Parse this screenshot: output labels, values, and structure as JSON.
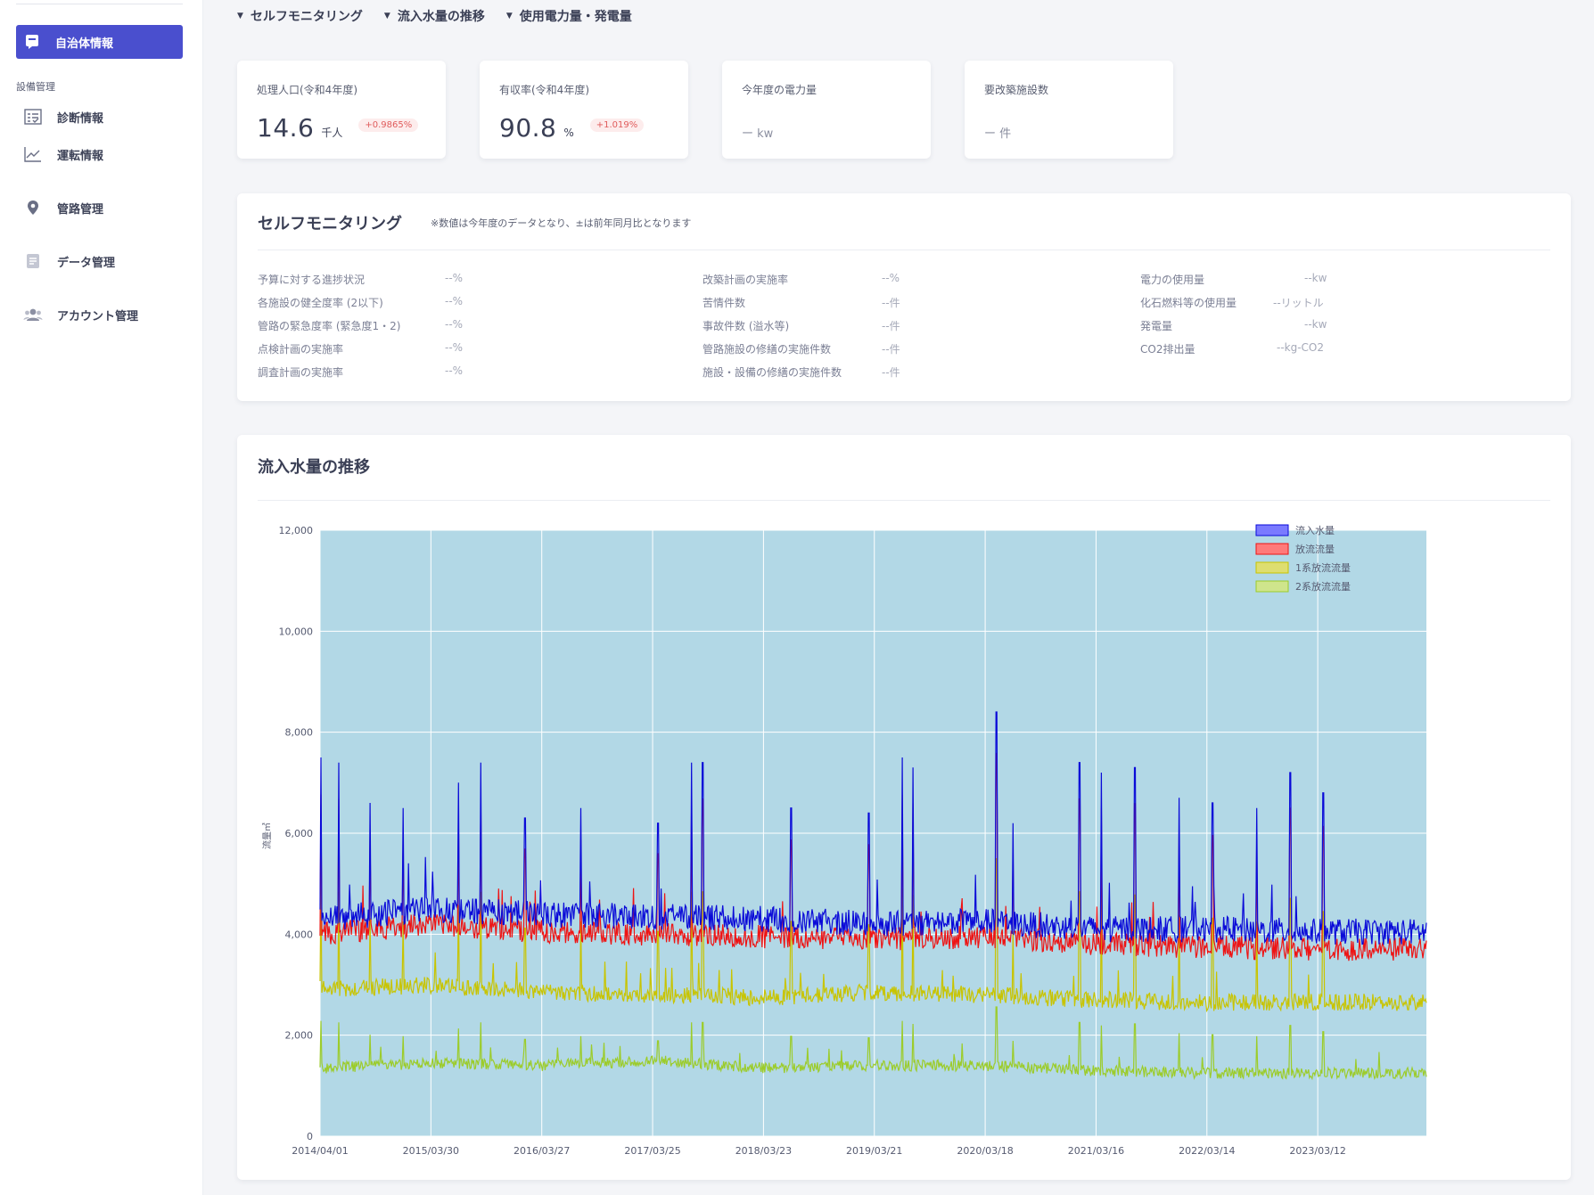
{
  "sidebar": {
    "active_item": "自治体情報",
    "section_label": "設備管理",
    "items": [
      {
        "label": "診断情報",
        "icon": "diagnosis-icon"
      },
      {
        "label": "運転情報",
        "icon": "line-chart-icon"
      },
      {
        "label": "管路管理",
        "icon": "map-pin-icon"
      },
      {
        "label": "データ管理",
        "icon": "document-icon"
      },
      {
        "label": "アカウント管理",
        "icon": "users-icon"
      }
    ]
  },
  "topnav": [
    {
      "label": "セルフモニタリング"
    },
    {
      "label": "流入水量の推移"
    },
    {
      "label": "使用電力量・発電量"
    }
  ],
  "cards": [
    {
      "label": "処理人口(令和4年度)",
      "value": "14.6",
      "unit": "千人",
      "delta": "+0.9865%"
    },
    {
      "label": "有収率(令和4年度)",
      "value": "90.8",
      "unit": "%",
      "delta": "+1.019%"
    },
    {
      "label": "今年度の電力量",
      "value": "ー kw"
    },
    {
      "label": "要改築施設数",
      "value": "ー 件"
    }
  ],
  "self_monitoring": {
    "title": "セルフモニタリング",
    "note": "※数値は今年度のデータとなり、±は前年同月比となります",
    "col1": [
      {
        "label": "予算に対する進捗状況",
        "value": "--%"
      },
      {
        "label": "各施設の健全度率 (2以下)",
        "value": "--%"
      },
      {
        "label": "管路の緊急度率 (緊急度1・2)",
        "value": "--%"
      },
      {
        "label": "点検計画の実施率",
        "value": "--%"
      },
      {
        "label": "調査計画の実施率",
        "value": "--%"
      }
    ],
    "col2": [
      {
        "label": "改築計画の実施率",
        "value": "--%"
      },
      {
        "label": "苦情件数",
        "value": "--件"
      },
      {
        "label": "事故件数 (溢水等)",
        "value": "--件"
      },
      {
        "label": "管路施設の修繕の実施件数",
        "value": "--件"
      },
      {
        "label": "施設・設備の修繕の実施件数",
        "value": "--件"
      }
    ],
    "col3": [
      {
        "label": "電力の使用量",
        "value": "--kw"
      },
      {
        "label": "化石燃料等の使用量",
        "value": "--リットル"
      },
      {
        "label": "発電量",
        "value": "--kw"
      },
      {
        "label": "CO2排出量",
        "value": "--kg-CO2"
      }
    ]
  },
  "inflow_panel": {
    "title": "流入水量の推移"
  },
  "chart_data": {
    "type": "line",
    "title": "",
    "xlabel": "",
    "ylabel": "流量㎥",
    "ylim": [
      0,
      12000
    ],
    "yticks": [
      "0",
      "2,000",
      "4,000",
      "6,000",
      "8,000",
      "10,000",
      "12,000"
    ],
    "xticks": [
      "2014/04/01",
      "2015/03/30",
      "2016/03/27",
      "2017/03/25",
      "2018/03/23",
      "2019/03/21",
      "2020/03/18",
      "2021/03/16",
      "2022/03/14",
      "2023/03/12"
    ],
    "background": "#b2d8e6",
    "grid": true,
    "legend_position": "top-right",
    "series": [
      {
        "name": "流入水量",
        "color": "#0a0ad8",
        "legend_color": "#7a7aff",
        "baseline": [
          4300,
          4500,
          4400,
          4350,
          4300,
          4200,
          4250,
          4100,
          4100,
          4050
        ],
        "spikes": [
          [
            2014.26,
            7500
          ],
          [
            2014.42,
            7400
          ],
          [
            2014.7,
            6600
          ],
          [
            2015.0,
            6500
          ],
          [
            2015.5,
            7000
          ],
          [
            2015.7,
            7400
          ],
          [
            2016.1,
            6300
          ],
          [
            2016.6,
            6500
          ],
          [
            2017.3,
            6200
          ],
          [
            2017.6,
            7400
          ],
          [
            2017.7,
            7400
          ],
          [
            2018.5,
            6500
          ],
          [
            2019.2,
            6400
          ],
          [
            2019.5,
            7500
          ],
          [
            2019.6,
            7300
          ],
          [
            2020.35,
            8400
          ],
          [
            2020.5,
            6200
          ],
          [
            2021.1,
            7400
          ],
          [
            2021.3,
            7200
          ],
          [
            2021.6,
            7300
          ],
          [
            2022.0,
            6700
          ],
          [
            2022.3,
            6600
          ],
          [
            2022.7,
            6500
          ],
          [
            2023.0,
            7200
          ],
          [
            2023.3,
            6800
          ]
        ]
      },
      {
        "name": "放流流量",
        "color": "#ee1414",
        "legend_color": "#ff7a7a",
        "baseline": [
          4000,
          4200,
          4050,
          4000,
          3950,
          3900,
          3950,
          3800,
          3750,
          3700
        ]
      },
      {
        "name": "1系放流流量",
        "color": "#c8c400",
        "legend_color": "#dede70",
        "baseline": [
          2900,
          3000,
          2850,
          2800,
          2750,
          2850,
          2800,
          2700,
          2650,
          2650
        ]
      },
      {
        "name": "2系放流流量",
        "color": "#9ccc2a",
        "legend_color": "#cfe58c",
        "baseline": [
          1350,
          1450,
          1400,
          1500,
          1350,
          1400,
          1400,
          1300,
          1250,
          1250
        ]
      }
    ]
  }
}
